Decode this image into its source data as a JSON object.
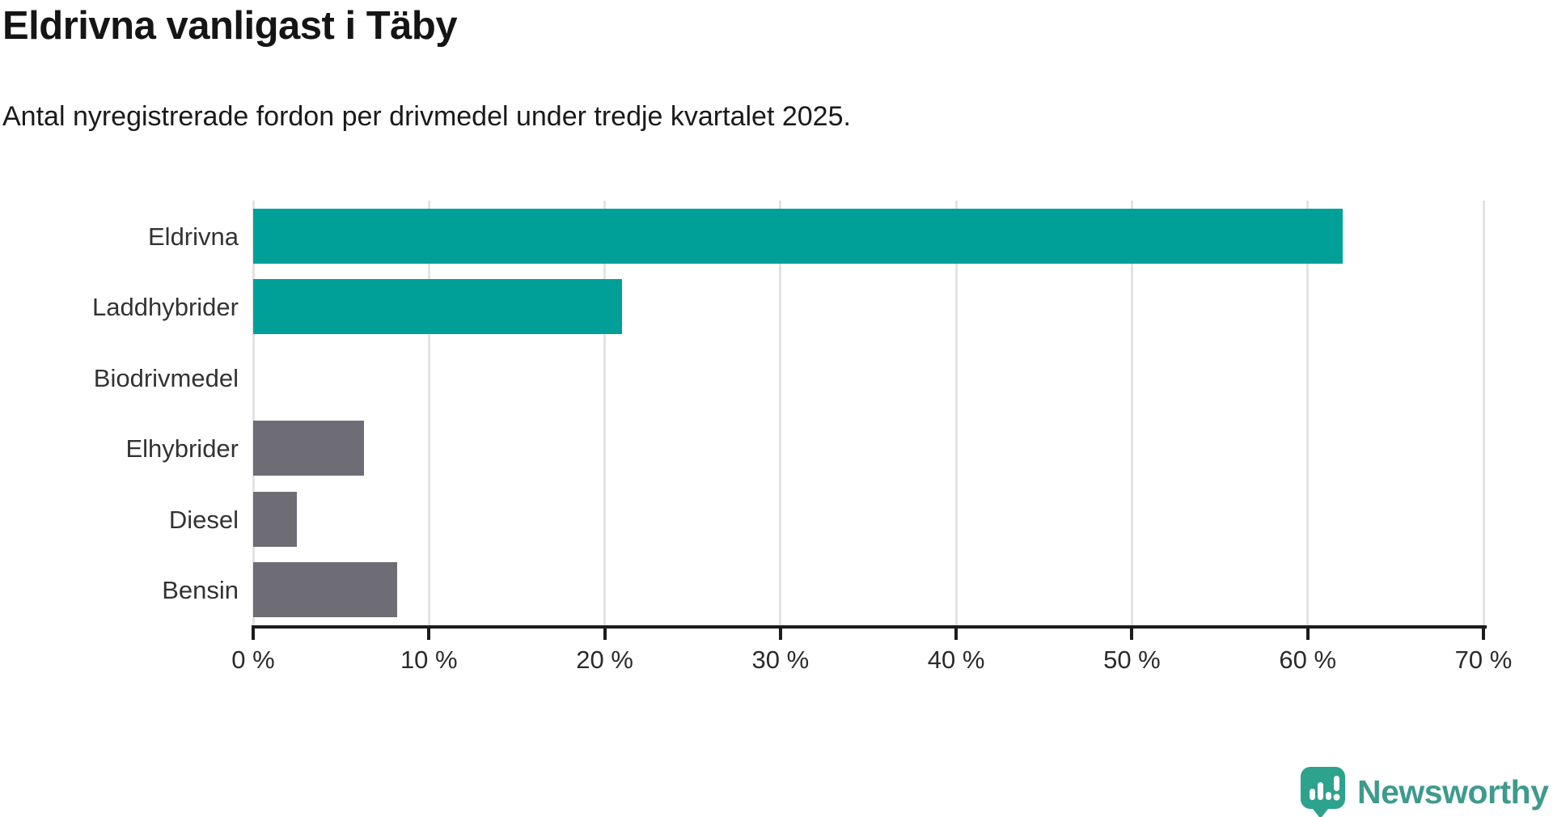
{
  "chart_data": {
    "type": "bar",
    "orientation": "horizontal",
    "title": "Eldrivna vanligast i Täby",
    "subtitle": "Antal nyregistrerade fordon per drivmedel under tredje kvartalet 2025.",
    "categories": [
      "Eldrivna",
      "Laddhybrider",
      "Biodrivmedel",
      "Elhybrider",
      "Diesel",
      "Bensin"
    ],
    "values": [
      62,
      21,
      0,
      6.3,
      2.5,
      8.2
    ],
    "bar_colors": [
      "#00A099",
      "#00A099",
      "#6E6C75",
      "#6E6C75",
      "#6E6C75",
      "#6E6C75"
    ],
    "xlim": [
      0,
      70
    ],
    "x_ticks": [
      0,
      10,
      20,
      30,
      40,
      50,
      60,
      70
    ],
    "x_tick_labels": [
      "0 %",
      "10 %",
      "20 %",
      "30 %",
      "40 %",
      "50 %",
      "60 %",
      "70 %"
    ],
    "grid": "vertical-only",
    "legend": "none",
    "colors": {
      "highlight_bar": "#00A099",
      "default_bar": "#6E6C75",
      "gridline": "#E3E3E3",
      "axis": "#1C1C1C",
      "title": "#151515",
      "label": "#333333"
    }
  },
  "branding": {
    "logo_text": "Newsworthy",
    "logo_text_color": "#3E9A8D",
    "logo_icon": "newsworthy-speech-bubble-barchart-icon",
    "logo_icon_color": "#2DA28D"
  }
}
